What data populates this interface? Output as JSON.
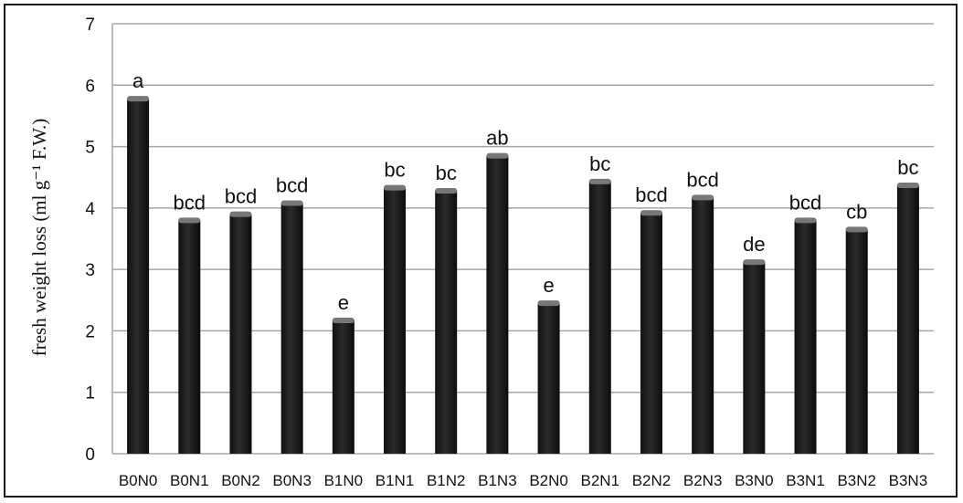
{
  "chart_data": {
    "type": "bar",
    "ylabel": "fresh weight loss (ml g⁻¹ F.W.)",
    "ylim": [
      0,
      7
    ],
    "yticks": [
      "0",
      "1",
      "2",
      "3",
      "4",
      "5",
      "6",
      "7"
    ],
    "grid": true,
    "categories": [
      "B0N0",
      "B0N1",
      "B0N2",
      "B0N3",
      "B1N0",
      "B1N1",
      "B1N2",
      "B1N3",
      "B2N0",
      "B2N1",
      "B2N2",
      "B2N3",
      "B3N0",
      "B3N1",
      "B3N2",
      "B3N3"
    ],
    "values": [
      5.78,
      3.8,
      3.9,
      4.08,
      2.17,
      4.33,
      4.28,
      4.85,
      2.45,
      4.43,
      3.92,
      4.17,
      3.12,
      3.8,
      3.65,
      4.37
    ],
    "significance_letters": [
      "a",
      "bcd",
      "bcd",
      "bcd",
      "e",
      "bc",
      "bc",
      "ab",
      "e",
      "bc",
      "bcd",
      "bcd",
      "de",
      "bcd",
      "cb",
      "bc"
    ],
    "colors": {
      "bar": "#2b2b2b",
      "grid": "#a6a6a6"
    }
  }
}
